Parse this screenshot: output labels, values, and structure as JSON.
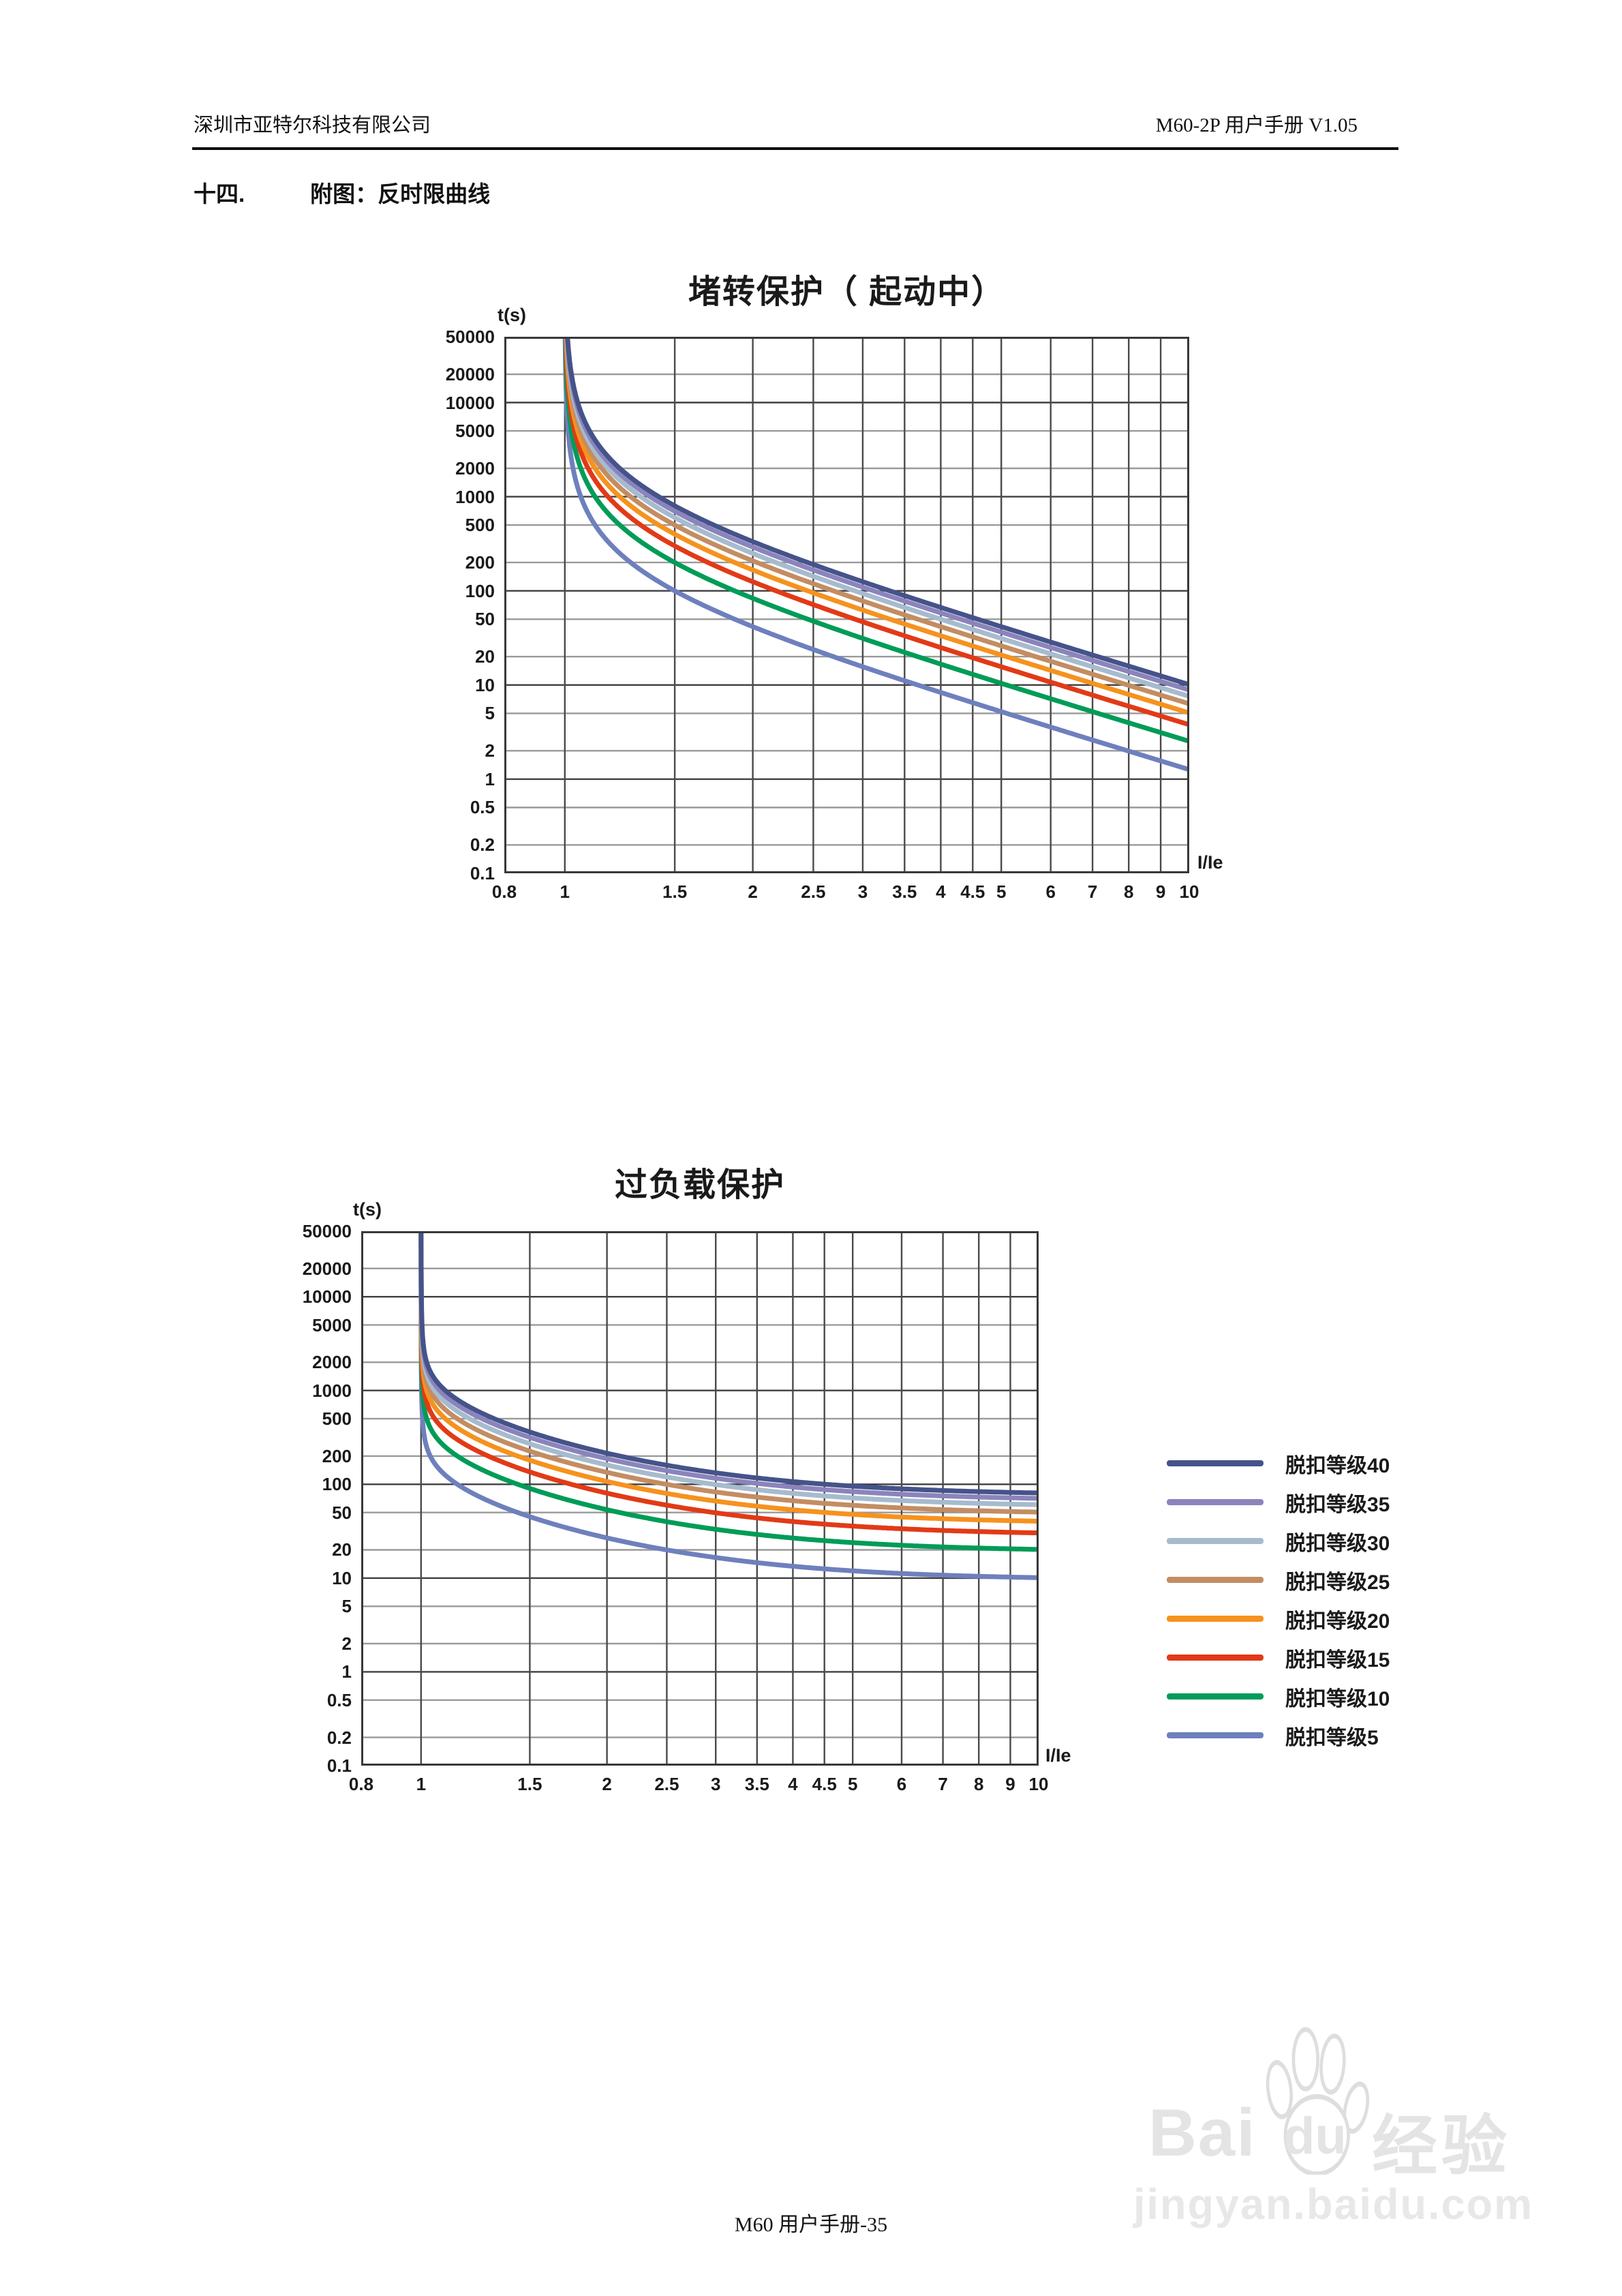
{
  "page": {
    "header_left": "深圳市亚特尔科技有限公司",
    "header_right": "M60-2P 用户手册 V1.05",
    "section_no": "十四.",
    "section_title": "附图：反时限曲线",
    "footer": "M60 用户手册-35"
  },
  "watermark": {
    "brand_bai": "Bai",
    "brand_du": "du",
    "brand_cn": "经验",
    "url": "jingyan.baidu.com"
  },
  "colors": {
    "grid_dark": "#3f3f3f",
    "grid_light": "#9a9a9a",
    "grid_vertical": "#4a4a4a",
    "plot_border": "#383838",
    "text": "#1a1a1a"
  },
  "chart_data": [
    {
      "type": "line",
      "title": "堵转保护（ 起动中）",
      "xlabel": "I/Ie",
      "ylabel": "t(s)",
      "x_scale": "log",
      "y_scale": "log",
      "xlim": [
        0.8,
        10
      ],
      "ylim": [
        0.1,
        50000
      ],
      "x_ticks": [
        "0.8",
        "1",
        "1.5",
        "2",
        "2.5",
        "3",
        "3.5",
        "4",
        "4.5",
        "5",
        "6",
        "7",
        "8",
        "9",
        "10"
      ],
      "y_ticks": [
        "50000",
        "20000",
        "10000",
        "5000",
        "2000",
        "1000",
        "500",
        "200",
        "100",
        "50",
        "20",
        "10",
        "5",
        "2",
        "1",
        "0.5",
        "0.2",
        "0.1"
      ],
      "grid": true,
      "legend_position": "none",
      "model": {
        "type": "locked_rotor",
        "formula": "t = k * class / ((I/Ie)^2 - 1)",
        "k": 25,
        "clip": 50000
      },
      "samples_I_over_Ie": [
        1.1,
        1.5,
        2,
        3,
        5,
        10
      ],
      "series": [
        {
          "name": "脱扣等级40",
          "class": 40,
          "color": "#45538A",
          "t_seconds": [
            4762,
            800,
            333,
            125,
            41.7,
            10.1
          ]
        },
        {
          "name": "脱扣等级35",
          "class": 35,
          "color": "#8B84BC",
          "t_seconds": [
            4167,
            700,
            292,
            109,
            36.5,
            8.8
          ]
        },
        {
          "name": "脱扣等级30",
          "class": 30,
          "color": "#A6BBCE",
          "t_seconds": [
            3571,
            600,
            250,
            93.8,
            31.3,
            7.6
          ]
        },
        {
          "name": "脱扣等级25",
          "class": 25,
          "color": "#C38D62",
          "t_seconds": [
            2976,
            500,
            208,
            78.1,
            26.0,
            6.3
          ]
        },
        {
          "name": "脱扣等级20",
          "class": 20,
          "color": "#F6921E",
          "t_seconds": [
            2381,
            400,
            167,
            62.5,
            20.8,
            5.1
          ]
        },
        {
          "name": "脱扣等级15",
          "class": 15,
          "color": "#E23A17",
          "t_seconds": [
            1786,
            300,
            125,
            46.9,
            15.6,
            3.8
          ]
        },
        {
          "name": "脱扣等级10",
          "class": 10,
          "color": "#009C58",
          "t_seconds": [
            1190,
            200,
            83.3,
            31.3,
            10.4,
            2.5
          ]
        },
        {
          "name": "脱扣等级5",
          "class": 5,
          "color": "#6E80BD",
          "t_seconds": [
            595,
            100,
            41.7,
            15.6,
            5.2,
            1.3
          ]
        }
      ]
    },
    {
      "type": "line",
      "title": "过负载保护",
      "xlabel": "I/Ie",
      "ylabel": "t(s)",
      "x_scale": "log",
      "y_scale": "log",
      "xlim": [
        0.8,
        10
      ],
      "ylim": [
        0.1,
        50000
      ],
      "x_ticks": [
        "0.8",
        "1",
        "1.5",
        "2",
        "2.5",
        "3",
        "3.5",
        "4",
        "4.5",
        "5",
        "6",
        "7",
        "8",
        "9",
        "10"
      ],
      "y_ticks": [
        "50000",
        "20000",
        "10000",
        "5000",
        "2000",
        "1000",
        "500",
        "200",
        "100",
        "50",
        "20",
        "10",
        "5",
        "2",
        "1",
        "0.5",
        "0.2",
        "0.1"
      ],
      "grid": true,
      "legend_position": "right",
      "model": {
        "type": "overload",
        "formula": "t = class * (tau*ln(I^2/(I^2-1)) + t_min + k_asymptote/(I^2-1))",
        "tau": 11.45,
        "t_min": 1.9,
        "k_asymptote": 0.5,
        "clip": 50000
      },
      "samples_I_over_Ie": [
        1.1,
        1.5,
        2,
        3,
        5,
        10
      ],
      "series": [
        {
          "name": "脱扣等级40",
          "class": 40,
          "color": "#45538A",
          "t_seconds": [
            973,
            361,
            214,
            132,
            95.6,
            80.8
          ]
        },
        {
          "name": "脱扣等级35",
          "class": 35,
          "color": "#8B84BC",
          "t_seconds": [
            851,
            316,
            188,
            116,
            83.6,
            70.7
          ]
        },
        {
          "name": "脱扣等级30",
          "class": 30,
          "color": "#A6BBCE",
          "t_seconds": [
            730,
            271,
            161,
            99.4,
            71.7,
            60.6
          ]
        },
        {
          "name": "脱扣等级25",
          "class": 25,
          "color": "#C38D62",
          "t_seconds": [
            608,
            226,
            134,
            82.8,
            59.7,
            50.5
          ]
        },
        {
          "name": "脱扣等级20",
          "class": 20,
          "color": "#F6921E",
          "t_seconds": [
            487,
            181,
            107,
            66.3,
            47.8,
            40.4
          ]
        },
        {
          "name": "脱扣等级15",
          "class": 15,
          "color": "#E23A17",
          "t_seconds": [
            365,
            135,
            80.4,
            49.7,
            35.8,
            30.3
          ]
        },
        {
          "name": "脱扣等级10",
          "class": 10,
          "color": "#009C58",
          "t_seconds": [
            243,
            90.3,
            53.6,
            33.1,
            23.9,
            20.2
          ]
        },
        {
          "name": "脱扣等级5",
          "class": 5,
          "color": "#6E80BD",
          "t_seconds": [
            122,
            45.1,
            26.8,
            16.6,
            11.9,
            10.1
          ]
        }
      ]
    }
  ]
}
